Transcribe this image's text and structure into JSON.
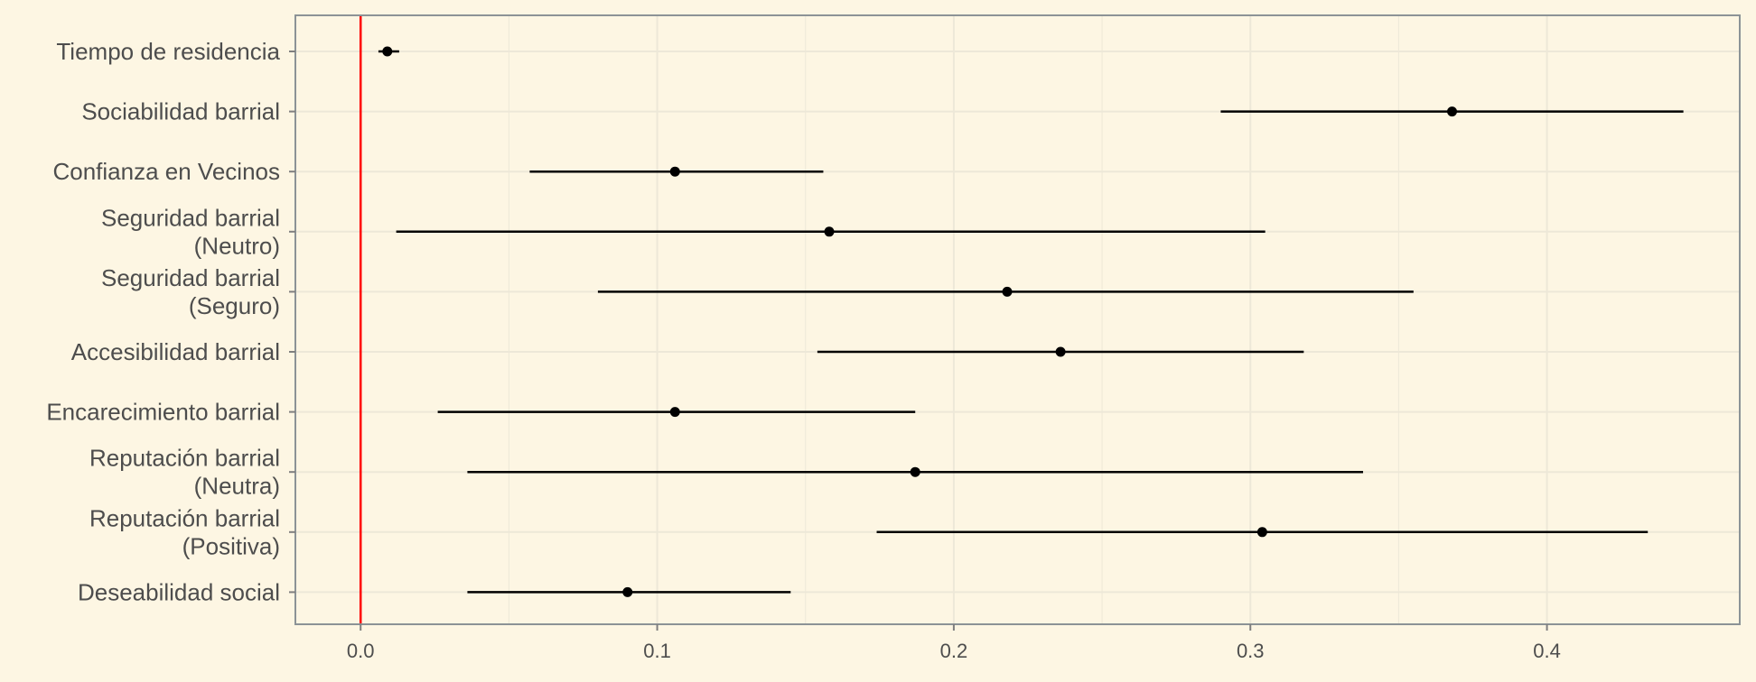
{
  "chart_data": {
    "type": "scatter",
    "subtype": "coefficient-plot",
    "title": "",
    "xlabel": "",
    "ylabel": "",
    "xlim": [
      -0.022,
      0.465
    ],
    "xticks": [
      0.0,
      0.1,
      0.2,
      0.3,
      0.4
    ],
    "xtick_labels": [
      "0.0",
      "0.1",
      "0.2",
      "0.3",
      "0.4"
    ],
    "reference_line": {
      "x": 0.0,
      "color": "#FF0000"
    },
    "grid": true,
    "legend": "none",
    "colors": {
      "background": "#FDF6E3",
      "grid": "#EDE8D8",
      "border": "#8C9396",
      "point": "#000000",
      "reference": "#FF0000",
      "text": "#4D4D4D"
    },
    "categories": [
      {
        "label": [
          "Tiempo de residencia"
        ],
        "estimate": 0.009,
        "low": 0.006,
        "high": 0.013
      },
      {
        "label": [
          "Sociabilidad barrial"
        ],
        "estimate": 0.368,
        "low": 0.29,
        "high": 0.446
      },
      {
        "label": [
          "Confianza en Vecinos"
        ],
        "estimate": 0.106,
        "low": 0.057,
        "high": 0.156
      },
      {
        "label": [
          "Seguridad barrial",
          "(Neutro)"
        ],
        "estimate": 0.158,
        "low": 0.012,
        "high": 0.305
      },
      {
        "label": [
          "Seguridad barrial",
          "(Seguro)"
        ],
        "estimate": 0.218,
        "low": 0.08,
        "high": 0.355
      },
      {
        "label": [
          "Accesibilidad barrial"
        ],
        "estimate": 0.236,
        "low": 0.154,
        "high": 0.318
      },
      {
        "label": [
          "Encarecimiento barrial"
        ],
        "estimate": 0.106,
        "low": 0.026,
        "high": 0.187
      },
      {
        "label": [
          "Reputación barrial",
          "(Neutra)"
        ],
        "estimate": 0.187,
        "low": 0.036,
        "high": 0.338
      },
      {
        "label": [
          "Reputación barrial",
          "(Positiva)"
        ],
        "estimate": 0.304,
        "low": 0.174,
        "high": 0.434
      },
      {
        "label": [
          "Deseabilidad social"
        ],
        "estimate": 0.09,
        "low": 0.036,
        "high": 0.145
      }
    ]
  }
}
